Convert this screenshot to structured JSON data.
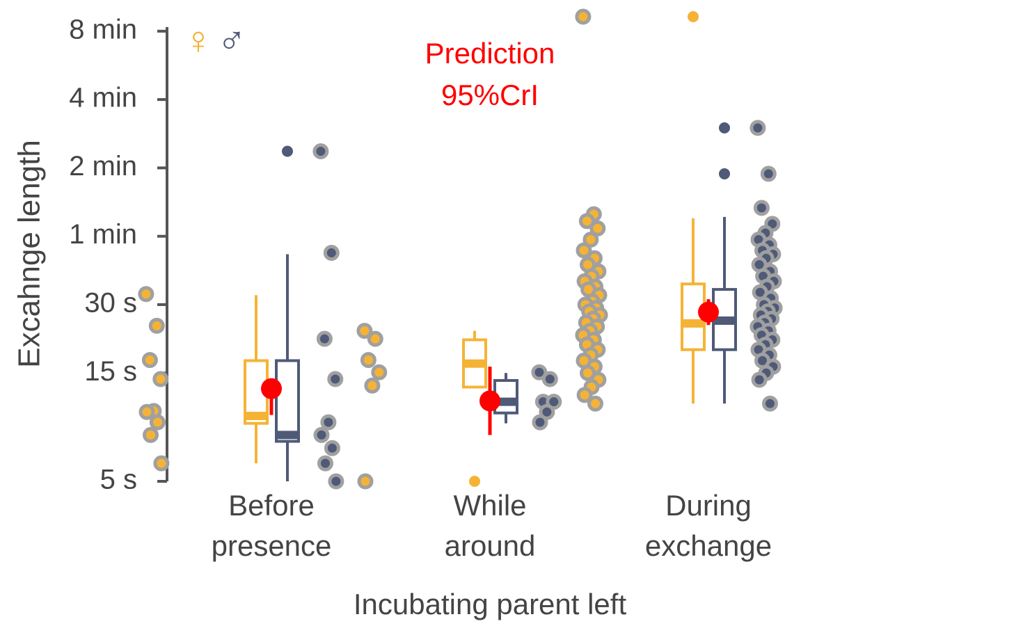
{
  "chart_data": {
    "type": "box",
    "ylabel": "Excahnge length",
    "xlabel": "Incubating parent left",
    "log_scale": true,
    "categories": [
      [
        "Before",
        "presence"
      ],
      [
        "While",
        "around"
      ],
      [
        "During",
        "exchange"
      ]
    ],
    "ylim": [
      5,
      580
    ],
    "yticks": [
      {
        "value": 5,
        "label": "5 s"
      },
      {
        "value": 15,
        "label": "15 s"
      },
      {
        "value": 30,
        "label": "30 s"
      },
      {
        "value": 60,
        "label": "1 min"
      },
      {
        "value": 120,
        "label": "2 min"
      },
      {
        "value": 240,
        "label": "4 min"
      },
      {
        "value": 480,
        "label": "8 min"
      }
    ],
    "series": [
      {
        "name": "♀",
        "color": "#f5b335",
        "boxes": [
          {
            "whislo": 6,
            "q1": 9,
            "med": 9.7,
            "q3": 17,
            "whishi": 33,
            "outliers": []
          },
          {
            "whislo": 13,
            "q1": 13,
            "med": 16.5,
            "q3": 21,
            "whishi": 23,
            "outliers": [
              5
            ]
          },
          {
            "whislo": 11,
            "q1": 19,
            "med": 24.8,
            "q3": 37,
            "whishi": 72,
            "outliers": [
              556
            ]
          }
        ],
        "points": [
          [
            33.4,
            24.2,
            17.1,
            14.1,
            10.2,
            10.1,
            9.1,
            8,
            6
          ],
          [
            23,
            21.2,
            17.1,
            15.1,
            13.2,
            5
          ],
          [
            556,
            75,
            70,
            65,
            58,
            52,
            48,
            45,
            42,
            40,
            38,
            36,
            35,
            33,
            31,
            30,
            29,
            28,
            27,
            26,
            25,
            24,
            23,
            22,
            21,
            20,
            19,
            18,
            17,
            16,
            15,
            14,
            13,
            12,
            11
          ]
        ]
      },
      {
        "name": "♂",
        "color": "#4f5a78",
        "boxes": [
          {
            "whislo": 5,
            "q1": 7.5,
            "med": 8,
            "q3": 17,
            "whishi": 50,
            "outliers": [
              142
            ]
          },
          {
            "whislo": 9,
            "q1": 10,
            "med": 11.2,
            "q3": 13.9,
            "whishi": 15,
            "outliers": []
          },
          {
            "whislo": 11,
            "q1": 19,
            "med": 25.5,
            "q3": 35,
            "whishi": 73,
            "outliers": [
              180,
              113
            ]
          }
        ],
        "points": [
          [
            142,
            50.7,
            21.2,
            14.1,
            9.1,
            8,
            7,
            6,
            5
          ],
          [
            15.1,
            14.1,
            11.2,
            11.2,
            10.1,
            9.1
          ],
          [
            180,
            113,
            80,
            68,
            62,
            58,
            55,
            52,
            50,
            48,
            45,
            42,
            40,
            38,
            36,
            34,
            32,
            30,
            29,
            28,
            27,
            26,
            25,
            24,
            23,
            22,
            21,
            20,
            19,
            18,
            17,
            16,
            15,
            14,
            11
          ]
        ]
      }
    ],
    "prediction": {
      "label": [
        "Prediction",
        "95%CrI"
      ],
      "color": "#ff0000",
      "values": [
        12.8,
        11.3,
        27.8
      ],
      "lower": [
        9.8,
        8.0,
        24.4
      ],
      "upper": [
        13.2,
        16.0,
        31.7
      ]
    }
  }
}
